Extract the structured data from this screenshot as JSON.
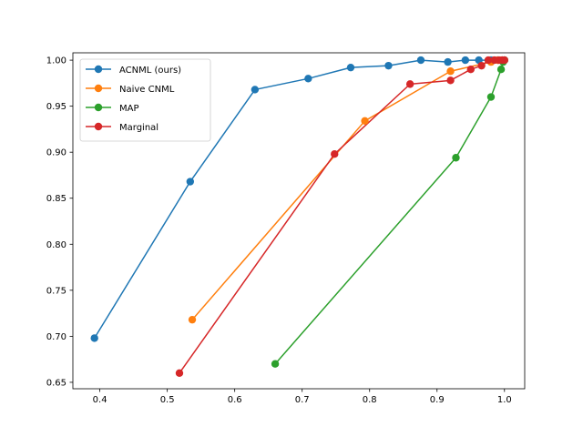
{
  "chart_data": {
    "type": "line",
    "title": "",
    "xlabel": "",
    "ylabel": "",
    "xlim": [
      0.36,
      1.03
    ],
    "ylim": [
      0.643,
      1.008
    ],
    "xticks": [
      0.4,
      0.5,
      0.6,
      0.7,
      0.8,
      0.9,
      1.0
    ],
    "xtick_labels": [
      "0.4",
      "0.5",
      "0.6",
      "0.7",
      "0.8",
      "0.9",
      "1.0"
    ],
    "yticks": [
      0.65,
      0.7,
      0.75,
      0.8,
      0.85,
      0.9,
      0.95,
      1.0
    ],
    "ytick_labels": [
      "0.65",
      "0.70",
      "0.75",
      "0.80",
      "0.85",
      "0.90",
      "0.95",
      "1.00"
    ],
    "grid": false,
    "legend_position": "top-left",
    "series": [
      {
        "name": "ACNML (ours)",
        "color": "#1f77b4",
        "points": [
          [
            0.392,
            0.698
          ],
          [
            0.534,
            0.868
          ],
          [
            0.63,
            0.968
          ],
          [
            0.709,
            0.98
          ],
          [
            0.772,
            0.992
          ],
          [
            0.828,
            0.994
          ],
          [
            0.876,
            1.0
          ],
          [
            0.916,
            0.998
          ],
          [
            0.942,
            1.0
          ],
          [
            0.962,
            1.0
          ],
          [
            0.98,
            1.0
          ],
          [
            0.99,
            1.0
          ],
          [
            0.997,
            1.0
          ],
          [
            1.0,
            1.0
          ]
        ]
      },
      {
        "name": "Naive CNML",
        "color": "#ff7f0e",
        "points": [
          [
            0.537,
            0.718
          ],
          [
            0.793,
            0.934
          ],
          [
            0.92,
            0.988
          ],
          [
            0.98,
            0.998
          ],
          [
            0.99,
            1.0
          ],
          [
            0.996,
            1.0
          ],
          [
            1.0,
            1.0
          ]
        ]
      },
      {
        "name": "MAP",
        "color": "#2ca02c",
        "points": [
          [
            0.66,
            0.67
          ],
          [
            0.928,
            0.894
          ],
          [
            0.98,
            0.96
          ],
          [
            0.995,
            0.99
          ],
          [
            0.998,
            0.998
          ],
          [
            1.0,
            1.0
          ]
        ]
      },
      {
        "name": "Marginal",
        "color": "#d62728",
        "points": [
          [
            0.518,
            0.66
          ],
          [
            0.748,
            0.898
          ],
          [
            0.86,
            0.974
          ],
          [
            0.92,
            0.978
          ],
          [
            0.95,
            0.99
          ],
          [
            0.966,
            0.994
          ],
          [
            0.976,
            1.0
          ],
          [
            0.985,
            1.0
          ],
          [
            0.992,
            1.0
          ],
          [
            0.997,
            1.0
          ],
          [
            1.0,
            1.0
          ]
        ]
      }
    ]
  }
}
